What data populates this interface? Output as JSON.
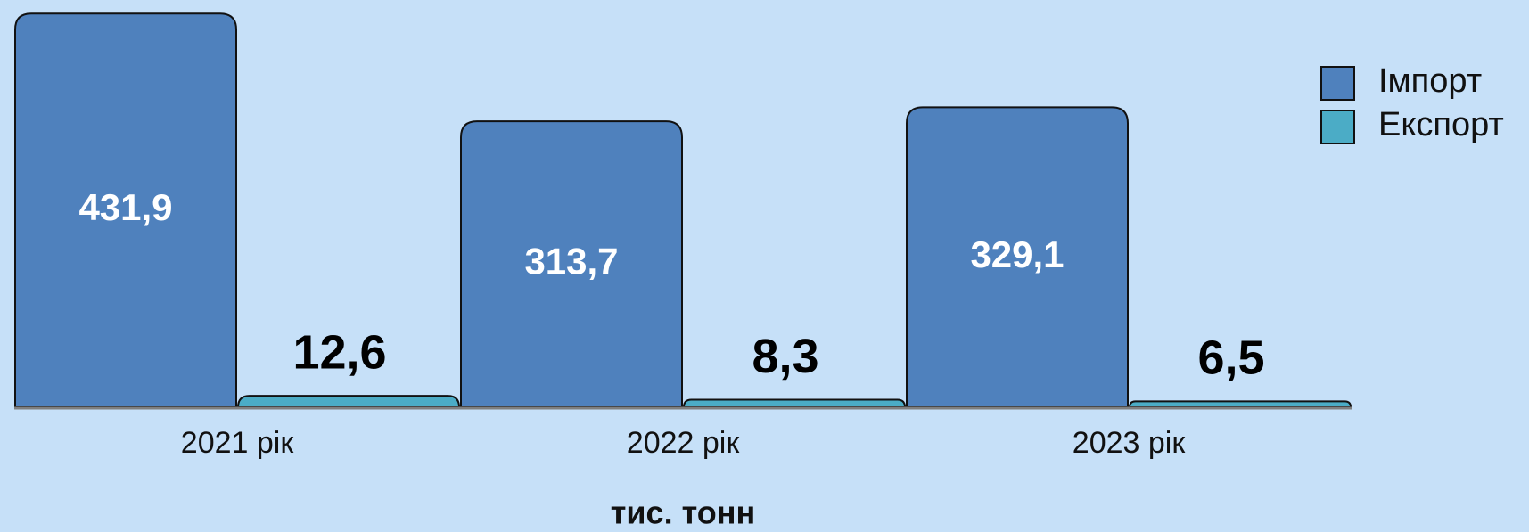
{
  "chart_data": {
    "type": "bar",
    "categories": [
      "2021 рік",
      "2022 рік",
      "2023 рік"
    ],
    "series": [
      {
        "name": "Імпорт",
        "color": "#4f81bd",
        "values": [
          431.9,
          313.7,
          329.1
        ],
        "value_labels": [
          "431,9",
          "313,7",
          "329,1"
        ]
      },
      {
        "name": "Експорт",
        "color": "#4bacc6",
        "values": [
          12.6,
          8.3,
          6.5
        ],
        "value_labels": [
          "12,6",
          "8,3",
          "6,5"
        ]
      }
    ],
    "xlabel": "тис. тонн",
    "ylim": [
      0,
      440
    ],
    "legend": "right"
  }
}
